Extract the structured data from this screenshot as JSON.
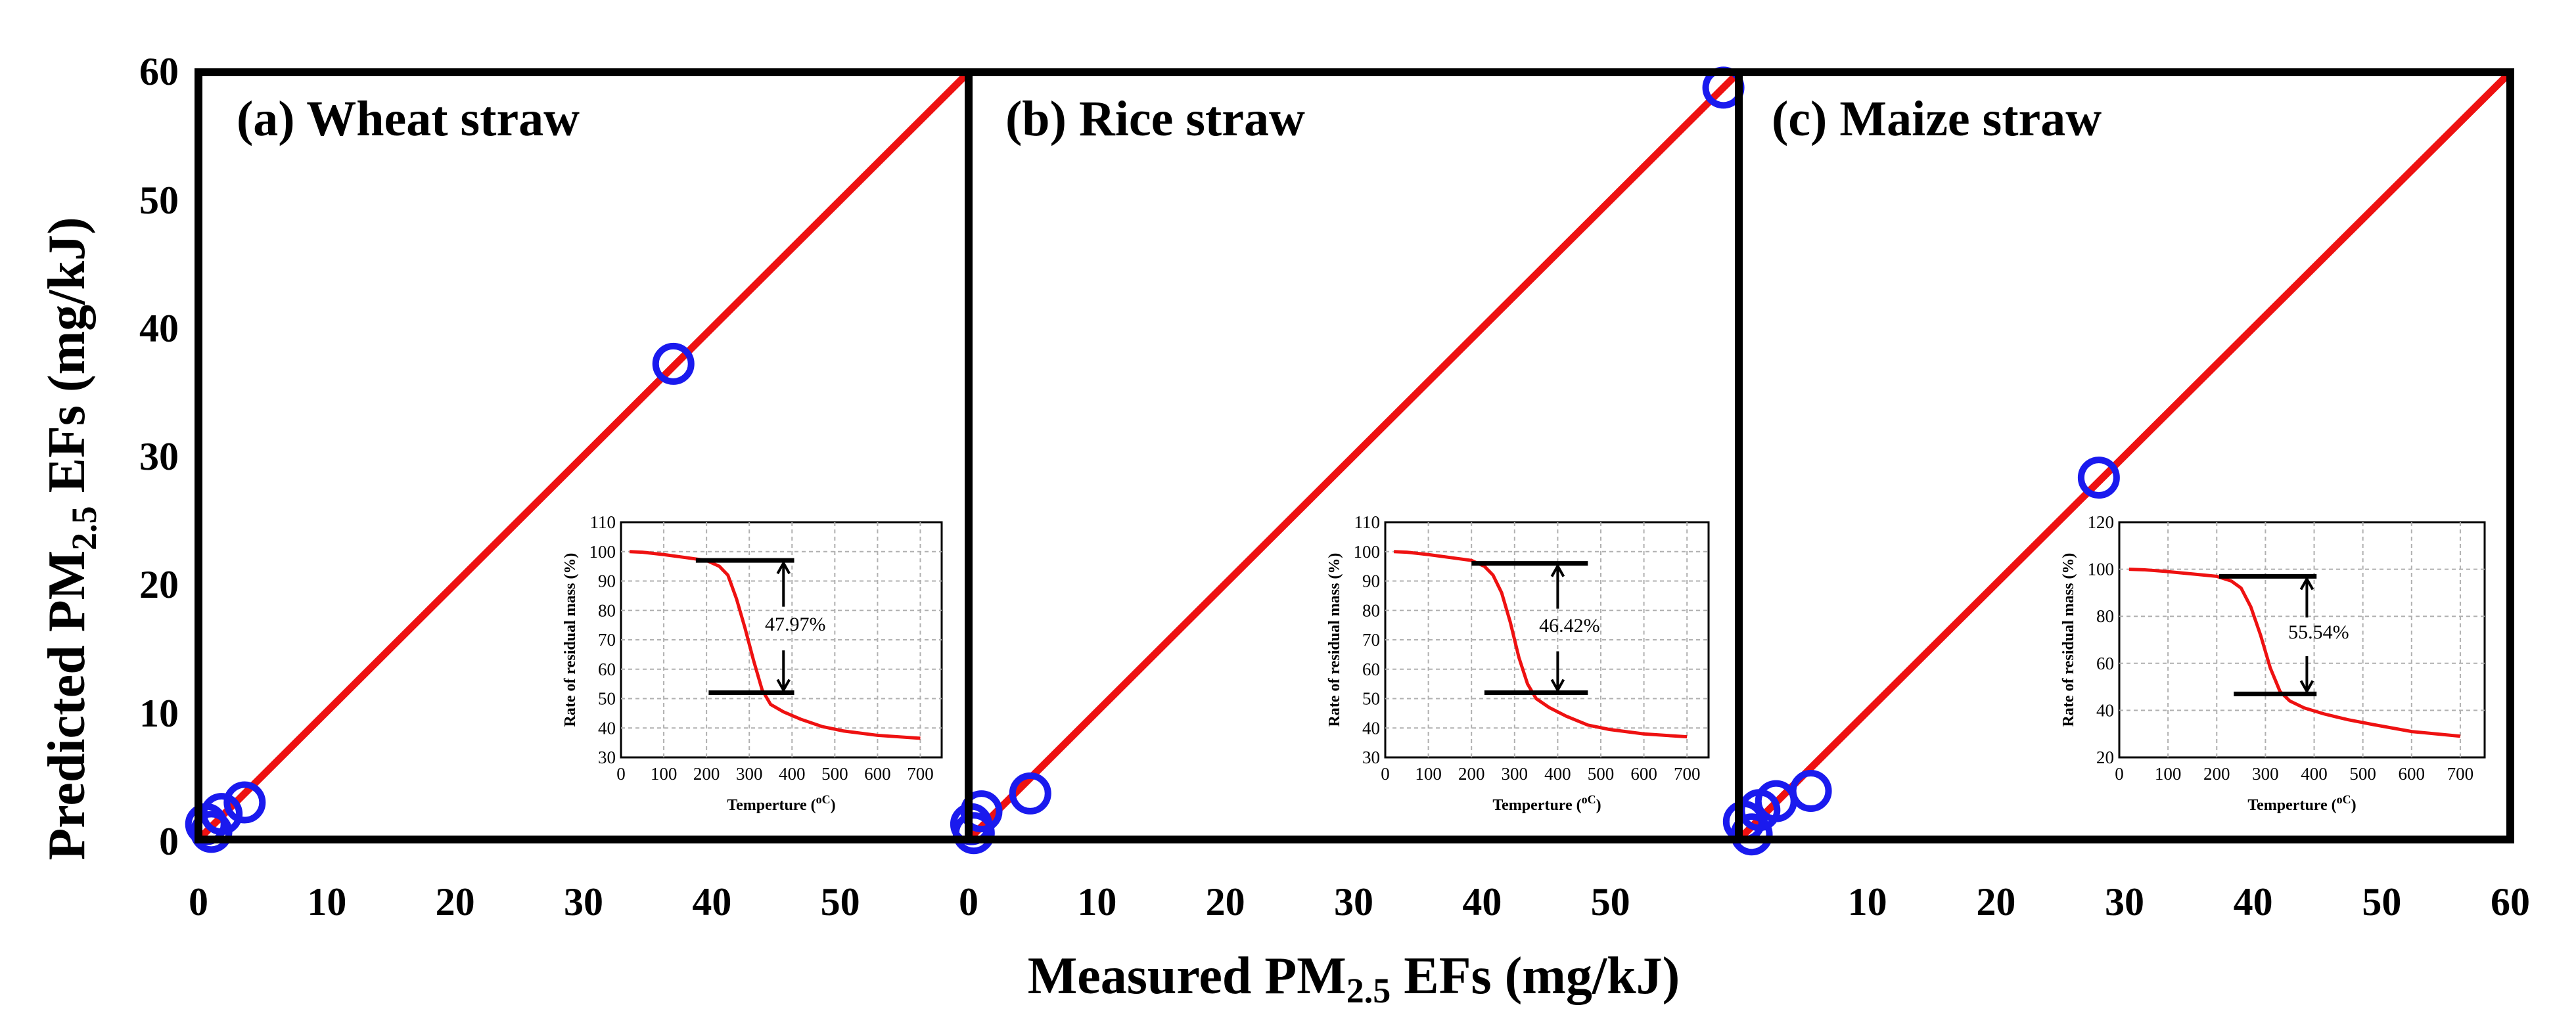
{
  "figure": {
    "xlabel_pre": "Measured PM",
    "xlabel_sub": "2.5",
    "xlabel_post": " EFs  (mg/kJ)",
    "ylabel_pre": "Predicted PM",
    "ylabel_sub": "2.5",
    "ylabel_post": " EFs  (mg/kJ)",
    "y_ticks": [
      "0",
      "10",
      "20",
      "30",
      "40",
      "50",
      "60"
    ],
    "colors": {
      "fit_line": "#ee1111",
      "points": "#1a1aee",
      "frame": "#000000"
    }
  },
  "chart_data": [
    {
      "type": "scatter",
      "title": "(a) Wheat straw",
      "xlim": [
        0,
        60
      ],
      "ylim": [
        0,
        60
      ],
      "x_tick_labels": [
        "0",
        "10",
        "20",
        "30",
        "40",
        "50"
      ],
      "fit_line": [
        [
          0,
          0
        ],
        [
          60,
          60
        ]
      ],
      "points": [
        [
          0.6,
          1.2
        ],
        [
          1.0,
          0.6
        ],
        [
          1.8,
          2.0
        ],
        [
          3.6,
          2.9
        ],
        [
          37.0,
          37.2
        ]
      ],
      "inset": {
        "xlabel_pre": "Temperture  (",
        "xlabel_unit": "oC",
        "xlabel_post": ")",
        "ylabel": "Rate of residual mass  (%)",
        "xlim": [
          0,
          750
        ],
        "ylim": [
          30,
          110
        ],
        "x_ticks": [
          "0",
          "100",
          "200",
          "300",
          "400",
          "500",
          "600",
          "700"
        ],
        "y_ticks": [
          "30",
          "40",
          "50",
          "60",
          "70",
          "80",
          "90",
          "100",
          "110"
        ],
        "curve_x": [
          20,
          50,
          100,
          150,
          200,
          230,
          250,
          270,
          290,
          310,
          330,
          350,
          380,
          420,
          470,
          520,
          600,
          700
        ],
        "curve_y": [
          100,
          99.8,
          99,
          98,
          97,
          95,
          92,
          84,
          74,
          63,
          53,
          48,
          45.5,
          43,
          40.5,
          39,
          37.5,
          36.5
        ],
        "upper_level": 97,
        "lower_level": 52,
        "span_x": [
          175,
          405
        ],
        "arrow_x": 380,
        "mass_loss_label": "47.97%"
      }
    },
    {
      "type": "scatter",
      "title": "(b) Rice straw",
      "xlim": [
        0,
        60
      ],
      "ylim": [
        0,
        60
      ],
      "x_tick_labels": [
        "0",
        "10",
        "20",
        "30",
        "40",
        "50"
      ],
      "fit_line": [
        [
          0,
          0
        ],
        [
          60,
          60
        ]
      ],
      "points": [
        [
          0.2,
          1.2
        ],
        [
          0.4,
          0.5
        ],
        [
          1.0,
          2.2
        ],
        [
          4.8,
          3.6
        ],
        [
          58.8,
          58.8
        ]
      ],
      "inset": {
        "xlabel_pre": "Temperture  (",
        "xlabel_unit": "oC",
        "xlabel_post": ")",
        "ylabel": "Rate of residual mass  (%)",
        "xlim": [
          0,
          750
        ],
        "ylim": [
          30,
          110
        ],
        "x_ticks": [
          "0",
          "100",
          "200",
          "300",
          "400",
          "500",
          "600",
          "700"
        ],
        "y_ticks": [
          "30",
          "40",
          "50",
          "60",
          "70",
          "80",
          "90",
          "100",
          "110"
        ],
        "curve_x": [
          20,
          50,
          100,
          150,
          200,
          230,
          250,
          270,
          290,
          310,
          330,
          350,
          380,
          420,
          470,
          520,
          600,
          700
        ],
        "curve_y": [
          100,
          99.8,
          99,
          98,
          97,
          95,
          92,
          86,
          76,
          64,
          55,
          50,
          47,
          44,
          41,
          39.5,
          38,
          37
        ],
        "upper_level": 96,
        "lower_level": 52,
        "span_x": [
          200,
          470
        ],
        "arrow_x": 400,
        "mass_loss_label": "46.42%"
      }
    },
    {
      "type": "scatter",
      "title": "(c) Maize straw",
      "xlim": [
        0,
        60
      ],
      "ylim": [
        0,
        60
      ],
      "x_tick_labels": [
        "10",
        "20",
        "30",
        "40",
        "50",
        "60"
      ],
      "fit_line": [
        [
          0,
          0
        ],
        [
          60,
          60
        ]
      ],
      "points": [
        [
          0.4,
          1.4
        ],
        [
          1.0,
          0.4
        ],
        [
          1.6,
          2.3
        ],
        [
          2.9,
          3.0
        ],
        [
          5.6,
          3.8
        ],
        [
          28.0,
          28.3
        ]
      ],
      "inset": {
        "xlabel_pre": "Temperture  (",
        "xlabel_unit": "oC",
        "xlabel_post": ")",
        "ylabel": "Rate of residual mass  (%)",
        "xlim": [
          0,
          750
        ],
        "ylim": [
          20,
          120
        ],
        "x_ticks": [
          "0",
          "100",
          "200",
          "300",
          "400",
          "500",
          "600",
          "700"
        ],
        "y_ticks": [
          "20",
          "40",
          "60",
          "80",
          "100",
          "120"
        ],
        "curve_x": [
          20,
          50,
          100,
          150,
          200,
          230,
          250,
          270,
          290,
          310,
          330,
          350,
          380,
          420,
          470,
          520,
          600,
          700
        ],
        "curve_y": [
          100,
          99.8,
          99,
          98,
          97,
          95,
          92,
          84,
          72,
          58,
          48,
          44,
          41,
          38.5,
          36,
          34,
          31,
          29
        ],
        "upper_level": 97,
        "lower_level": 47,
        "span_x": [
          205,
          405
        ],
        "arrow_x": 385,
        "mass_loss_label": "55.54%"
      }
    }
  ]
}
